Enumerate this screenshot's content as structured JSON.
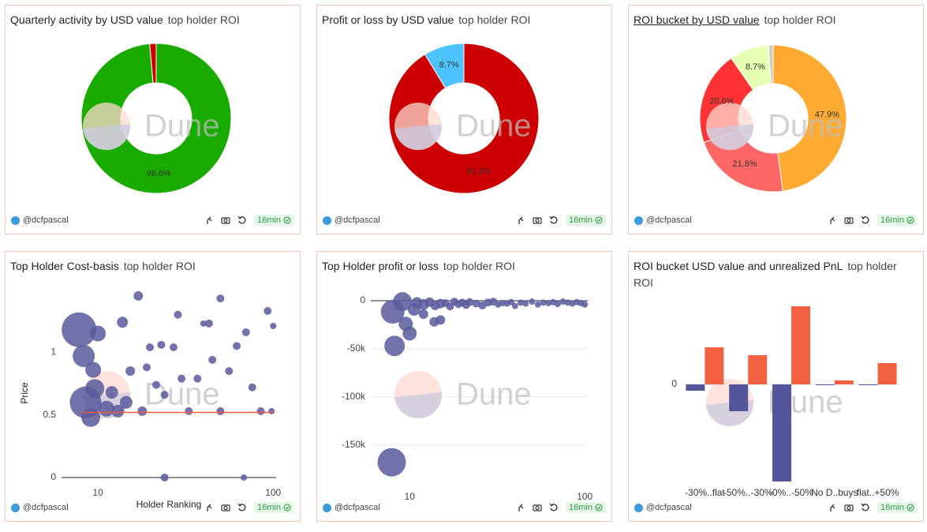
{
  "author": "@dcfpascal",
  "age": "16min",
  "watermark": "Dune",
  "chart_data": [
    {
      "type": "pie",
      "title": "Quarterly activity by USD value",
      "subtitle": "top holder ROI",
      "values": [
        98.6,
        1.4
      ],
      "value_labels": [
        "98.6%",
        null
      ],
      "colors": [
        "#1aab00",
        "#cc0000"
      ]
    },
    {
      "type": "pie",
      "title": "Profit or loss by USD value",
      "subtitle": "top holder ROI",
      "values": [
        91.3,
        8.7
      ],
      "value_labels": [
        "91.3%",
        "8.7%"
      ],
      "colors": [
        "#cc0000",
        "#4dc3ff"
      ]
    },
    {
      "type": "pie",
      "title": "ROI bucket by USD value",
      "subtitle": "top holder ROI",
      "values": [
        47.9,
        21.8,
        20.6,
        8.7,
        1.0
      ],
      "value_labels": [
        "47.9%",
        "21.8%",
        "20.6%",
        "8.7%",
        null
      ],
      "colors": [
        "#ffab33",
        "#ff6666",
        "#ff3333",
        "#e6ffb3",
        "#cccccc"
      ]
    },
    {
      "type": "scatter",
      "title": "Top Holder Cost-basis",
      "subtitle": "top holder ROI",
      "x_label": "Holder Ranking",
      "y_label": "Price",
      "x_log": true,
      "grid": false,
      "xlim": [
        6.2,
        104
      ],
      "xticks": [
        10,
        100
      ],
      "ylim": [
        0,
        1.5
      ],
      "yticks": [
        0,
        0.5,
        1
      ],
      "series": [
        {
          "type": "scatter",
          "color": "#5a5a9e",
          "x": [
            7.8,
            10,
            8.3,
            9.4,
            9.6,
            8.5,
            9.1,
            11.2,
            12,
            13,
            14.5,
            17,
            13.8,
            15.3,
            17.9,
            19,
            19.8,
            23,
            24,
            27,
            28.6,
            33,
            37,
            43,
            50,
            50,
            56,
            62,
            70,
            76,
            85,
            93,
            100,
            98,
            24,
            68,
            40,
            45,
            30,
            21.5
          ],
          "values": [
            1.18,
            1.15,
            0.97,
            0.86,
            0.71,
            0.6,
            0.48,
            0.55,
            0.68,
            0.53,
            0.6,
            1.45,
            1.24,
            0.85,
            0.53,
            0.88,
            1.04,
            1.06,
            0.66,
            1.04,
            1.3,
            0.53,
            0.79,
            1.23,
            1.43,
            0.53,
            0.85,
            1.05,
            1.16,
            0.72,
            0.53,
            1.33,
            1.21,
            0.53,
            0,
            0,
            1.23,
            0.94,
            0.79,
            0.74
          ],
          "sizes": [
            22,
            10,
            14,
            10,
            12,
            20,
            12,
            10,
            8,
            8,
            8,
            6,
            7,
            6,
            6,
            5,
            5,
            5,
            5,
            5,
            5,
            5,
            5,
            5,
            5,
            5,
            5,
            5,
            5,
            5,
            5,
            5,
            4,
            4,
            5,
            4,
            4,
            5,
            5,
            5
          ]
        },
        {
          "type": "line",
          "color": "#f05a3c",
          "x": [
            8,
            100
          ],
          "values": [
            0.52,
            0.52
          ]
        }
      ]
    },
    {
      "type": "scatter",
      "title": "Top Holder profit or loss",
      "subtitle": "top holder ROI",
      "x_log": true,
      "grid": true,
      "xlim": [
        6.0,
        104
      ],
      "xticks": [
        10,
        100
      ],
      "ylim": [
        -188000,
        9000
      ],
      "yticks": [
        0,
        {
          "value": -50000,
          "label": "-50k"
        },
        {
          "value": -100000,
          "label": "-100k"
        },
        {
          "value": -150000,
          "label": "-150k"
        }
      ],
      "series": [
        {
          "type": "scatter",
          "color": "#5a5a9e",
          "x": [
            7.9,
            8.2,
            10,
            9.5,
            8,
            9.1,
            10.6,
            13.8,
            15,
            12,
            11,
            12,
            13,
            14,
            15,
            16,
            17,
            18,
            19,
            20,
            21,
            22,
            24,
            26,
            28,
            30,
            32,
            34,
            36,
            38,
            40,
            43,
            46,
            50,
            54,
            58,
            62,
            66,
            70,
            75,
            80,
            85,
            90,
            95,
            100
          ],
          "values": [
            -168000,
            -47000,
            -34000,
            -24000,
            -11500,
            -1000,
            -9000,
            -22000,
            -20000,
            -14000,
            -2000,
            -4000,
            -1500,
            -5000,
            -3000,
            -2500,
            -6000,
            -1000,
            -3500,
            -2000,
            -4500,
            -1500,
            -3000,
            -5000,
            -2000,
            -1000,
            -4000,
            -2500,
            -3000,
            -1500,
            -5500,
            -2000,
            -3000,
            -1000,
            -4000,
            -2000,
            -2500,
            -1500,
            -3500,
            -1000,
            -2000,
            -3000,
            -1500,
            -2500,
            -4000
          ],
          "sizes": [
            18,
            13,
            9,
            9,
            15,
            12,
            8,
            6,
            6,
            6,
            7,
            7,
            6,
            6,
            6,
            5,
            5,
            5,
            5,
            5,
            5,
            5,
            5,
            5,
            5,
            5,
            4,
            4,
            4,
            4,
            4,
            4,
            4,
            4,
            4,
            4,
            4,
            4,
            4,
            4,
            4,
            4,
            4,
            4,
            4
          ]
        }
      ]
    },
    {
      "type": "bar",
      "title": "ROI bucket USD value and unrealized PnL",
      "subtitle": "top holder ROI",
      "categories": [
        "-30%..flat",
        "-50%..-30%",
        "-0%..-50%",
        "No D..buys",
        "flat..+50%"
      ],
      "ylim": [
        -125,
        112
      ],
      "yticks": [
        0
      ],
      "series": [
        {
          "color": "#55559b",
          "values": [
            -8,
            -34,
            -123,
            -1,
            -1
          ]
        },
        {
          "color": "#f26241",
          "values": [
            47,
            37,
            99,
            5,
            27
          ]
        }
      ]
    }
  ]
}
